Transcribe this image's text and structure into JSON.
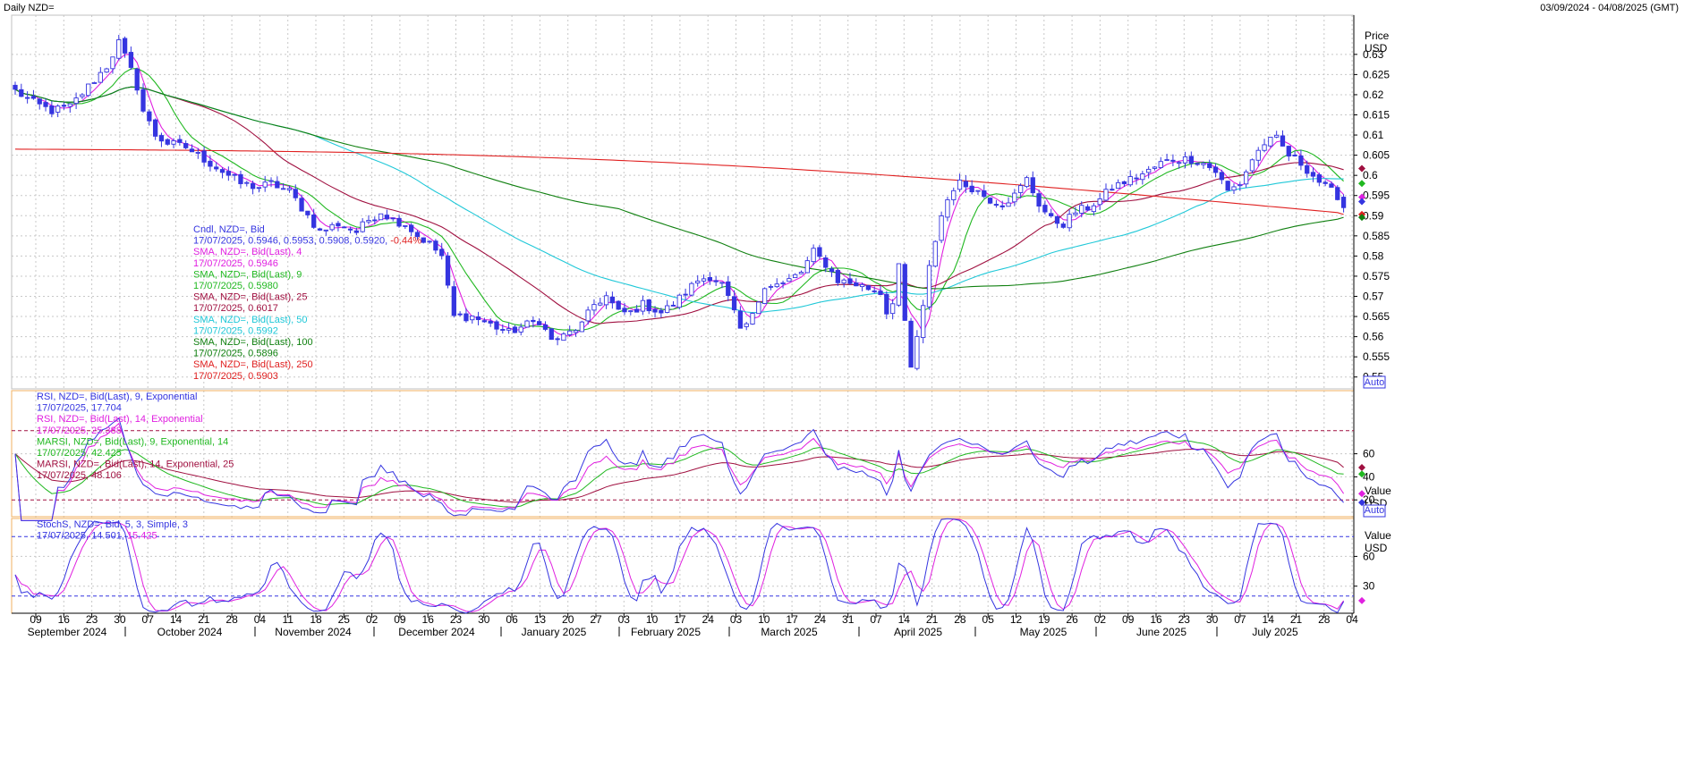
{
  "header": {
    "title": "Daily NZD=",
    "date_range": "03/09/2024 - 04/08/2025 (GMT)"
  },
  "colors": {
    "candle": "#3535e0",
    "sma4": "#e020e0",
    "sma9": "#20b820",
    "sma25": "#a01040",
    "sma50": "#20c8d8",
    "sma100": "#108010",
    "sma250": "#e02020",
    "rsi9": "#3535e0",
    "rsi14": "#e020e0",
    "marsi9": "#20b820",
    "marsi14": "#a01040",
    "stoch_k": "#3535e0",
    "stoch_d": "#e020e0",
    "panel_border": "#f0b060",
    "grid": "#c8c8c8"
  },
  "price_legend": [
    {
      "text": "Cndl, NZD=, Bid",
      "color": "#3535e0"
    },
    {
      "text": "17/07/2025, 0.5946, 0.5953, 0.5908, 0.5920, ",
      "color": "#3535e0",
      "extra": "-0.44%",
      "extra_color": "#e02020"
    },
    {
      "text": "SMA, NZD=, Bid(Last),  4",
      "color": "#e020e0"
    },
    {
      "text": "17/07/2025, 0.5946",
      "color": "#e020e0"
    },
    {
      "text": "SMA, NZD=, Bid(Last),  9",
      "color": "#20b820"
    },
    {
      "text": "17/07/2025, 0.5980",
      "color": "#20b820"
    },
    {
      "text": "SMA, NZD=, Bid(Last),  25",
      "color": "#a01040"
    },
    {
      "text": "17/07/2025, 0.6017",
      "color": "#a01040"
    },
    {
      "text": "SMA, NZD=, Bid(Last),  50",
      "color": "#20c8d8"
    },
    {
      "text": "17/07/2025, 0.5992",
      "color": "#20c8d8"
    },
    {
      "text": "SMA, NZD=, Bid(Last),  100",
      "color": "#108010"
    },
    {
      "text": "17/07/2025, 0.5896",
      "color": "#108010"
    },
    {
      "text": "SMA, NZD=, Bid(Last),  250",
      "color": "#e02020"
    },
    {
      "text": "17/07/2025, 0.5903",
      "color": "#e02020"
    }
  ],
  "rsi_legend": [
    {
      "text": "RSI, NZD=, Bid(Last),  9, Exponential",
      "color": "#3535e0"
    },
    {
      "text": "17/07/2025, 17.704",
      "color": "#3535e0"
    },
    {
      "text": "RSI, NZD=, Bid(Last),  14, Exponential",
      "color": "#e020e0"
    },
    {
      "text": "17/07/2025, 25.388",
      "color": "#e020e0"
    },
    {
      "text": "MARSI, NZD=, Bid(Last),  9, Exponential, 14",
      "color": "#20b820"
    },
    {
      "text": "17/07/2025, 42.425",
      "color": "#20b820"
    },
    {
      "text": "MARSI, NZD=, Bid(Last),  14, Exponential, 25",
      "color": "#a01040"
    },
    {
      "text": "17/07/2025, 48.106",
      "color": "#a01040"
    }
  ],
  "stoch_legend": [
    {
      "text": "StochS, NZD=, Bid,  5, 3, Simple, 3",
      "color": "#3535e0"
    },
    {
      "text": "17/07/2025, 14.501, ",
      "color": "#3535e0",
      "extra": "15.425",
      "extra_color": "#e020e0"
    }
  ],
  "axis_titles": {
    "price": [
      "Price",
      "USD"
    ],
    "rsi": [
      "Value",
      "USD"
    ],
    "stoch": [
      "Value",
      "USD"
    ],
    "auto_label": "Auto"
  },
  "chart_data": [
    {
      "type": "candlestick",
      "name": "price",
      "ylim": [
        0.5475,
        0.6375
      ],
      "yticks": [
        "0.55",
        "0.555",
        "0.56",
        "0.565",
        "0.57",
        "0.575",
        "0.58",
        "0.585",
        "0.59",
        "0.595",
        "0.6",
        "0.605",
        "0.61",
        "0.615",
        "0.62",
        "0.625",
        "0.63"
      ],
      "x_ticks": [
        "09",
        "16",
        "23",
        "30",
        "07",
        "14",
        "21",
        "28",
        "04",
        "11",
        "18",
        "25",
        "02",
        "09",
        "16",
        "23",
        "30",
        "06",
        "13",
        "20",
        "27",
        "03",
        "10",
        "17",
        "24",
        "03",
        "10",
        "17",
        "24",
        "31",
        "07",
        "14",
        "21",
        "28",
        "05",
        "12",
        "19",
        "26",
        "02",
        "09",
        "16",
        "23",
        "30",
        "07",
        "14",
        "21",
        "28",
        "04"
      ],
      "months": [
        "September 2024",
        "October 2024",
        "November 2024",
        "December 2024",
        "January 2025",
        "February 2025",
        "March 2025",
        "April 2025",
        "May 2025",
        "June 2025",
        "July 2025"
      ],
      "anchors": [
        [
          0,
          0.621
        ],
        [
          3,
          0.618
        ],
        [
          6,
          0.616
        ],
        [
          9,
          0.617
        ],
        [
          12,
          0.622
        ],
        [
          15,
          0.627
        ],
        [
          17,
          0.633
        ],
        [
          19,
          0.626
        ],
        [
          20,
          0.622
        ],
        [
          21,
          0.616
        ],
        [
          23,
          0.61
        ],
        [
          25,
          0.608
        ],
        [
          28,
          0.607
        ],
        [
          31,
          0.604
        ],
        [
          34,
          0.601
        ],
        [
          37,
          0.598
        ],
        [
          40,
          0.597
        ],
        [
          42,
          0.598
        ],
        [
          45,
          0.596
        ],
        [
          47,
          0.592
        ],
        [
          50,
          0.586
        ],
        [
          53,
          0.588
        ],
        [
          56,
          0.586
        ],
        [
          58,
          0.589
        ],
        [
          60,
          0.591
        ],
        [
          62,
          0.589
        ],
        [
          64,
          0.588
        ],
        [
          66,
          0.585
        ],
        [
          68,
          0.583
        ],
        [
          70,
          0.58
        ],
        [
          71,
          0.572
        ],
        [
          72,
          0.565
        ],
        [
          75,
          0.565
        ],
        [
          78,
          0.563
        ],
        [
          81,
          0.561
        ],
        [
          84,
          0.563
        ],
        [
          86,
          0.564
        ],
        [
          88,
          0.559
        ],
        [
          90,
          0.56
        ],
        [
          93,
          0.563
        ],
        [
          95,
          0.568
        ],
        [
          97,
          0.57
        ],
        [
          99,
          0.566
        ],
        [
          101,
          0.566
        ],
        [
          103,
          0.568
        ],
        [
          106,
          0.566
        ],
        [
          108,
          0.568
        ],
        [
          110,
          0.571
        ],
        [
          112,
          0.574
        ],
        [
          114,
          0.575
        ],
        [
          116,
          0.573
        ],
        [
          118,
          0.566
        ],
        [
          119,
          0.561
        ],
        [
          121,
          0.565
        ],
        [
          123,
          0.573
        ],
        [
          126,
          0.573
        ],
        [
          129,
          0.576
        ],
        [
          131,
          0.581
        ],
        [
          133,
          0.578
        ],
        [
          135,
          0.574
        ],
        [
          138,
          0.573
        ],
        [
          140,
          0.572
        ],
        [
          142,
          0.571
        ],
        [
          143,
          0.566
        ],
        [
          144,
          0.569
        ],
        [
          145,
          0.578
        ],
        [
          146,
          0.563
        ],
        [
          147,
          0.552
        ],
        [
          148,
          0.56
        ],
        [
          149,
          0.567
        ],
        [
          150,
          0.577
        ],
        [
          151,
          0.584
        ],
        [
          152,
          0.59
        ],
        [
          153,
          0.594
        ],
        [
          154,
          0.597
        ],
        [
          155,
          0.598
        ],
        [
          157,
          0.597
        ],
        [
          160,
          0.594
        ],
        [
          162,
          0.593
        ],
        [
          164,
          0.595
        ],
        [
          166,
          0.599
        ],
        [
          168,
          0.593
        ],
        [
          170,
          0.589
        ],
        [
          172,
          0.588
        ],
        [
          174,
          0.591
        ],
        [
          176,
          0.592
        ],
        [
          178,
          0.594
        ],
        [
          180,
          0.597
        ],
        [
          183,
          0.599
        ],
        [
          186,
          0.601
        ],
        [
          188,
          0.603
        ],
        [
          190,
          0.604
        ],
        [
          193,
          0.604
        ],
        [
          195,
          0.603
        ],
        [
          197,
          0.601
        ],
        [
          199,
          0.596
        ],
        [
          201,
          0.598
        ],
        [
          203,
          0.604
        ],
        [
          205,
          0.608
        ],
        [
          207,
          0.609
        ],
        [
          209,
          0.605
        ],
        [
          211,
          0.603
        ],
        [
          213,
          0.6
        ],
        [
          215,
          0.597
        ],
        [
          217,
          0.595
        ],
        [
          218,
          0.592
        ]
      ],
      "series": [
        {
          "name": "SMA 4",
          "period": 4,
          "last": 0.5946
        },
        {
          "name": "SMA 9",
          "period": 9,
          "last": 0.598
        },
        {
          "name": "SMA 25",
          "period": 25,
          "last": 0.6017
        },
        {
          "name": "SMA 50",
          "period": 50,
          "last": 0.5992
        },
        {
          "name": "SMA 100",
          "period": 100,
          "last": 0.5896
        },
        {
          "name": "SMA 250",
          "period": 250,
          "last": 0.5903
        }
      ],
      "last_candle": {
        "date": "17/07/2025",
        "open": 0.5946,
        "high": 0.5953,
        "low": 0.5908,
        "close": 0.592,
        "change": "-0.44%"
      }
    },
    {
      "type": "line",
      "name": "rsi",
      "ylim": [
        0,
        100
      ],
      "yticks": [
        "20",
        "40",
        "60"
      ],
      "reference_lines": [
        20,
        80
      ],
      "series": [
        {
          "name": "RSI 9",
          "last": 17.704
        },
        {
          "name": "RSI 14",
          "last": 25.388
        },
        {
          "name": "MARSI 9",
          "last": 42.425
        },
        {
          "name": "MARSI 14",
          "last": 48.106
        }
      ]
    },
    {
      "type": "line",
      "name": "stochastic",
      "ylim": [
        0,
        100
      ],
      "yticks": [
        "30",
        "60"
      ],
      "reference_lines": [
        20,
        80
      ],
      "series": [
        {
          "name": "%K",
          "last": 14.501
        },
        {
          "name": "%D",
          "last": 15.425
        }
      ]
    }
  ]
}
